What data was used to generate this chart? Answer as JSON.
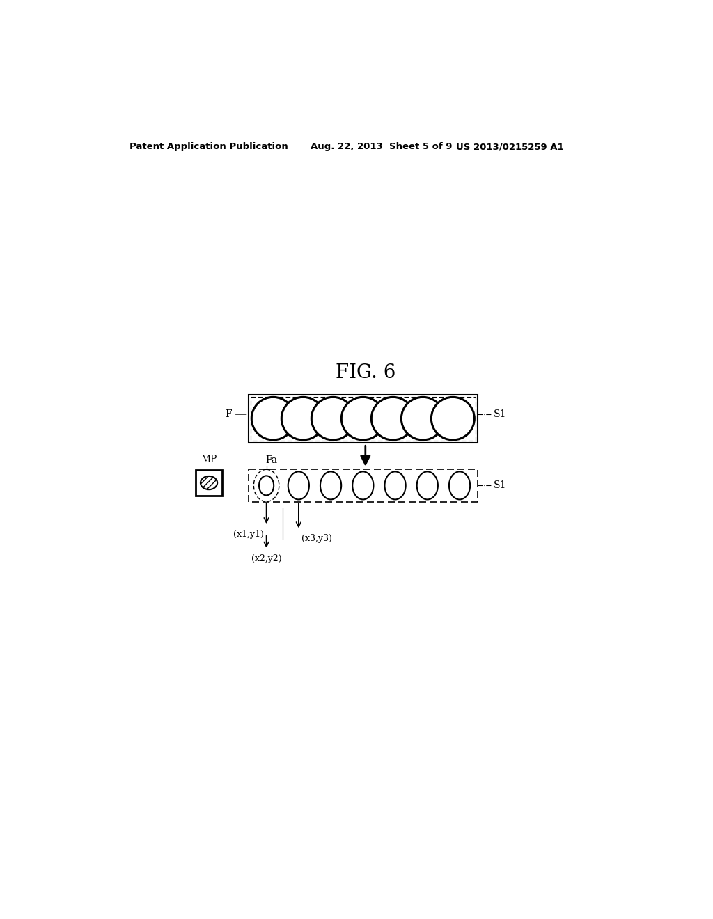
{
  "title": "FIG. 6",
  "patent_header_left": "Patent Application Publication",
  "patent_header_mid": "Aug. 22, 2013  Sheet 5 of 9",
  "patent_header_right": "US 2013/0215259 A1",
  "background_color": "#ffffff",
  "text_color": "#000000",
  "fig_title_fontsize": 20,
  "header_fontsize": 9.5,
  "label_fontsize": 10,
  "upper_row_circles": 7,
  "lower_row_circles": 7
}
